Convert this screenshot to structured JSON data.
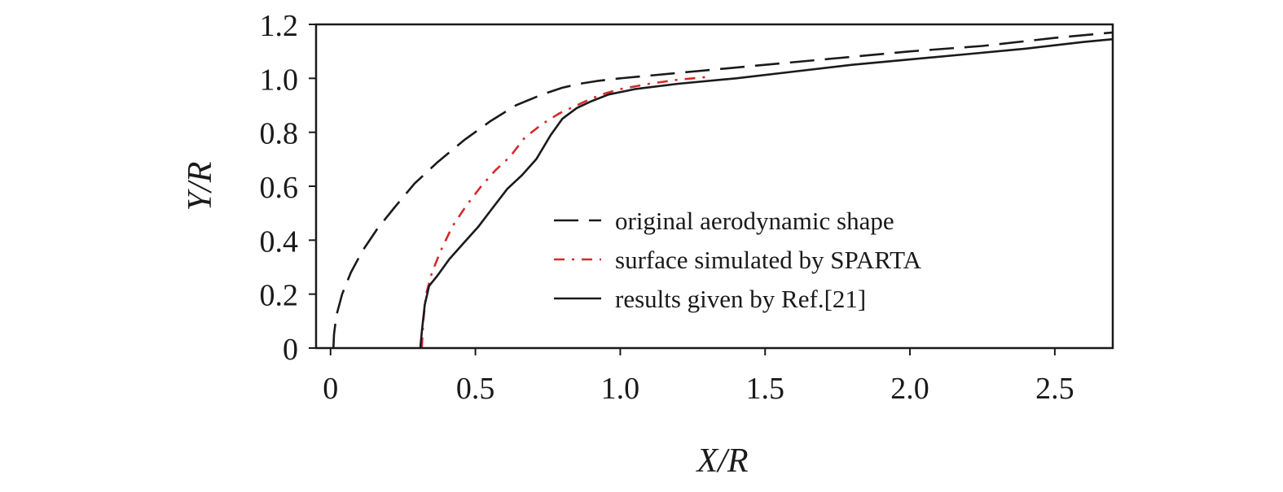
{
  "chart_data": {
    "type": "line",
    "title": "",
    "xlabel": "X/R",
    "ylabel": "Y/R",
    "xlim": [
      -0.05,
      2.7
    ],
    "ylim": [
      0,
      1.2
    ],
    "xticks": [
      {
        "value": 0,
        "label": "0"
      },
      {
        "value": 0.5,
        "label": "0.5"
      },
      {
        "value": 1.0,
        "label": "1.0"
      },
      {
        "value": 1.5,
        "label": "1.5"
      },
      {
        "value": 2.0,
        "label": "2.0"
      },
      {
        "value": 2.5,
        "label": "2.5"
      }
    ],
    "yticks": [
      {
        "value": 0,
        "label": "0"
      },
      {
        "value": 0.2,
        "label": "0.2"
      },
      {
        "value": 0.4,
        "label": "0.4"
      },
      {
        "value": 0.6,
        "label": "0.6"
      },
      {
        "value": 0.8,
        "label": "0.8"
      },
      {
        "value": 1.0,
        "label": "1.0"
      },
      {
        "value": 1.2,
        "label": "1.2"
      }
    ],
    "grid": false,
    "legend_position": "center-right",
    "series": [
      {
        "name": "original aerodynamic shape",
        "style": "long-dash",
        "color": "#1a1a1a",
        "x": [
          0.01,
          0.012,
          0.02,
          0.04,
          0.07,
          0.11,
          0.16,
          0.22,
          0.29,
          0.37,
          0.46,
          0.55,
          0.64,
          0.73,
          0.8,
          0.86,
          0.92,
          1.0,
          1.1,
          1.25,
          1.5,
          1.75,
          2.0,
          2.25,
          2.5,
          2.7
        ],
        "y": [
          0.0,
          0.05,
          0.12,
          0.2,
          0.28,
          0.36,
          0.44,
          0.52,
          0.61,
          0.69,
          0.77,
          0.84,
          0.9,
          0.94,
          0.965,
          0.98,
          0.99,
          1.0,
          1.01,
          1.025,
          1.05,
          1.075,
          1.1,
          1.12,
          1.15,
          1.17
        ]
      },
      {
        "name": "surface simulated by SPARTA",
        "style": "dash-dot",
        "color": "#d42a2a",
        "x": [
          0.315,
          0.32,
          0.33,
          0.35,
          0.38,
          0.42,
          0.47,
          0.52,
          0.57,
          0.62,
          0.67,
          0.73,
          0.79,
          0.85,
          0.9,
          0.95,
          1.0,
          1.1,
          1.2,
          1.3
        ],
        "y": [
          0.0,
          0.1,
          0.2,
          0.28,
          0.36,
          0.45,
          0.53,
          0.6,
          0.66,
          0.71,
          0.78,
          0.83,
          0.87,
          0.9,
          0.925,
          0.945,
          0.96,
          0.98,
          0.995,
          1.005
        ]
      },
      {
        "name": "results given by Ref.[21]",
        "style": "solid",
        "color": "#1a1a1a",
        "x": [
          0.31,
          0.315,
          0.325,
          0.34,
          0.37,
          0.41,
          0.46,
          0.51,
          0.56,
          0.61,
          0.66,
          0.71,
          0.76,
          0.8,
          0.85,
          0.9,
          0.96,
          1.05,
          1.2,
          1.4,
          1.6,
          1.8,
          2.0,
          2.2,
          2.4,
          2.6,
          2.7
        ],
        "y": [
          0.0,
          0.06,
          0.16,
          0.23,
          0.27,
          0.33,
          0.39,
          0.45,
          0.52,
          0.59,
          0.64,
          0.7,
          0.79,
          0.85,
          0.89,
          0.915,
          0.94,
          0.96,
          0.98,
          1.0,
          1.025,
          1.05,
          1.07,
          1.09,
          1.11,
          1.135,
          1.145
        ]
      }
    ]
  }
}
